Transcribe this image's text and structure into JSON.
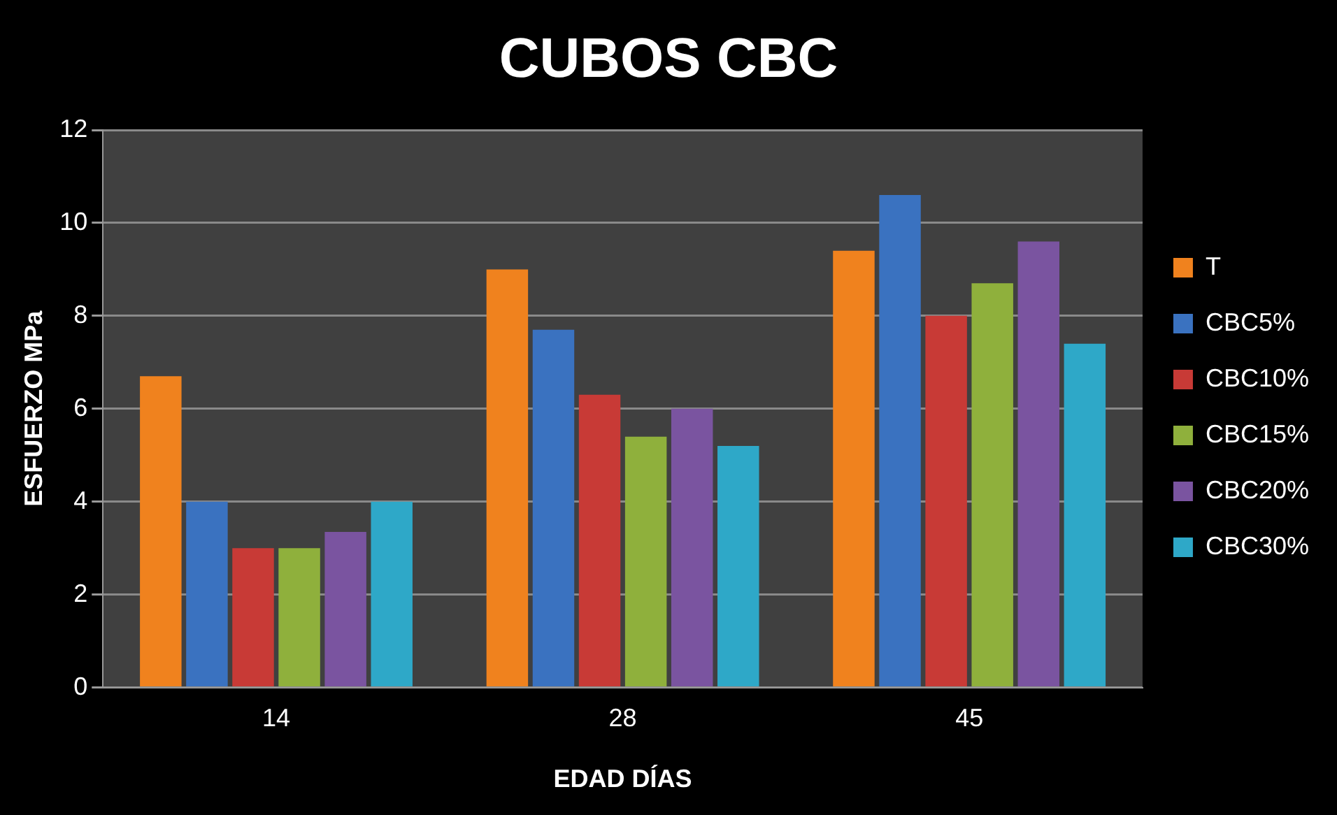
{
  "chart_data": {
    "type": "bar",
    "title": "CUBOS CBC",
    "xlabel": "EDAD DÍAS",
    "ylabel": "ESFUERZO MPa",
    "categories": [
      "14",
      "28",
      "45"
    ],
    "series": [
      {
        "name": "T",
        "color": "#f0821e",
        "values": [
          6.7,
          9.0,
          9.4
        ]
      },
      {
        "name": "CBC5%",
        "color": "#3a72c0",
        "values": [
          4.0,
          7.7,
          10.6
        ]
      },
      {
        "name": "CBC10%",
        "color": "#c83a36",
        "values": [
          3.0,
          6.3,
          8.0
        ]
      },
      {
        "name": "CBC15%",
        "color": "#8fb03c",
        "values": [
          3.0,
          5.4,
          8.7
        ]
      },
      {
        "name": "CBC20%",
        "color": "#7a54a0",
        "values": [
          3.35,
          6.0,
          9.6
        ]
      },
      {
        "name": "CBC30%",
        "color": "#2ea8c8",
        "values": [
          4.0,
          5.2,
          7.4
        ]
      }
    ],
    "ylim": [
      0,
      12
    ],
    "yticks": [
      0,
      2,
      4,
      6,
      8,
      10,
      12
    ],
    "grid": "y",
    "legend": "right"
  }
}
